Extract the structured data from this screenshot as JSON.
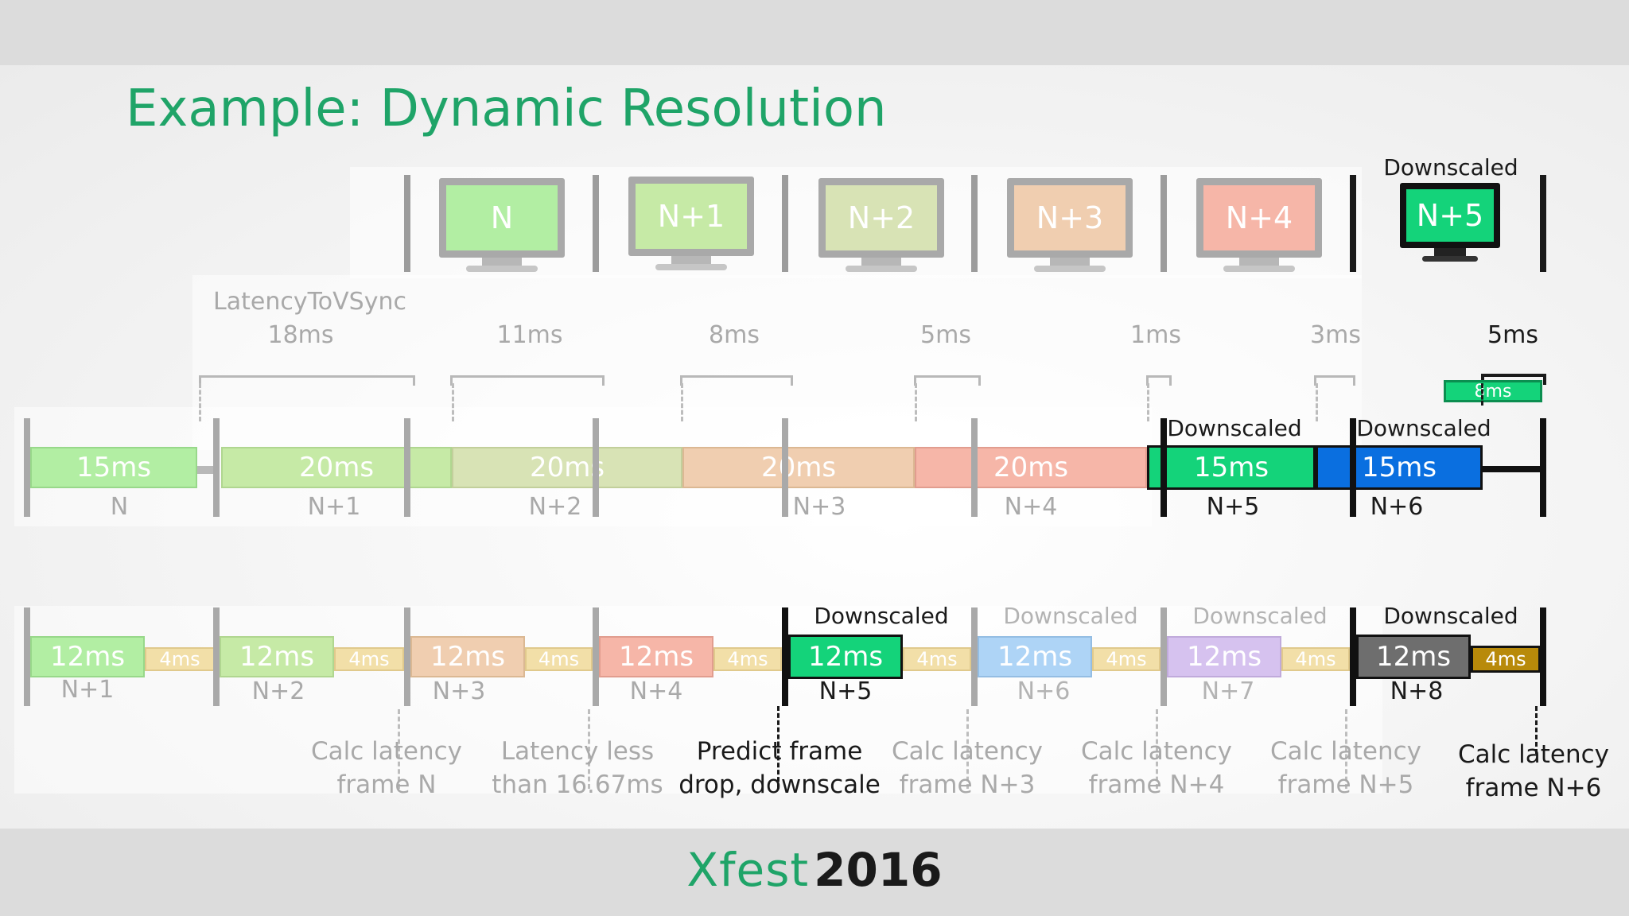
{
  "title": "Example: Dynamic Resolution",
  "footer": {
    "brand": "Xfest",
    "year": "2016"
  },
  "colors": {
    "accent": "#1fa468",
    "gpu_n5": "#14d37a",
    "gpu_n6": "#0a6fe0",
    "cpu_n5": "#14d37a",
    "cpu_n8": "#6e6e6e",
    "cpu_n8_small": "#b88a0a"
  },
  "monitors": [
    {
      "label": "N",
      "faded": true,
      "color": "#b2eea3"
    },
    {
      "label": "N+1",
      "faded": true,
      "color": "#c6eaa6"
    },
    {
      "label": "N+2",
      "faded": true,
      "color": "#d8e3b5"
    },
    {
      "label": "N+3",
      "faded": true,
      "color": "#f0ceb0"
    },
    {
      "label": "N+4",
      "faded": true,
      "color": "#f6b6a8"
    },
    {
      "label": "N+5",
      "faded": false,
      "color": "#14d37a",
      "caption": "Downscaled"
    }
  ],
  "latency": {
    "caption": "LatencyToVSync",
    "values": [
      "18ms",
      "11ms",
      "8ms",
      "5ms",
      "1ms",
      "3ms",
      "5ms"
    ],
    "green_box": "8ms"
  },
  "gpu_row": {
    "segments": [
      {
        "value": "15ms",
        "frame": "N"
      },
      {
        "value": "20ms",
        "frame": "N+1"
      },
      {
        "value": "20ms",
        "frame": "N+2"
      },
      {
        "value": "20ms",
        "frame": "N+3"
      },
      {
        "value": "20ms",
        "frame": "N+4"
      },
      {
        "value": "15ms",
        "frame": "N+5",
        "note": "Downscaled"
      },
      {
        "value": "15ms",
        "frame": "N+6",
        "note": "Downscaled"
      }
    ]
  },
  "cpu_row": {
    "segments": [
      {
        "main": "12ms",
        "small": "4ms",
        "frame": "N+1"
      },
      {
        "main": "12ms",
        "small": "4ms",
        "frame": "N+2"
      },
      {
        "main": "12ms",
        "small": "4ms",
        "frame": "N+3"
      },
      {
        "main": "12ms",
        "small": "4ms",
        "frame": "N+4"
      },
      {
        "main": "12ms",
        "small": "4ms",
        "frame": "N+5",
        "note": "Downscaled"
      },
      {
        "main": "12ms",
        "small": "4ms",
        "frame": "N+6",
        "note": "Downscaled"
      },
      {
        "main": "12ms",
        "small": "4ms",
        "frame": "N+7",
        "note": "Downscaled"
      },
      {
        "main": "12ms",
        "small": "4ms",
        "frame": "N+8",
        "note": "Downscaled"
      }
    ]
  },
  "annotations": [
    {
      "line1": "Calc latency",
      "line2": "frame N"
    },
    {
      "line1": "Latency less",
      "line2": "than 16.67ms"
    },
    {
      "line1": "Predict frame",
      "line2": "drop, downscale"
    },
    {
      "line1": "Calc latency",
      "line2": "frame N+3"
    },
    {
      "line1": "Calc latency",
      "line2": "frame N+4"
    },
    {
      "line1": "Calc latency",
      "line2": "frame N+5"
    },
    {
      "line1": "Calc latency",
      "line2": "frame N+6"
    }
  ]
}
